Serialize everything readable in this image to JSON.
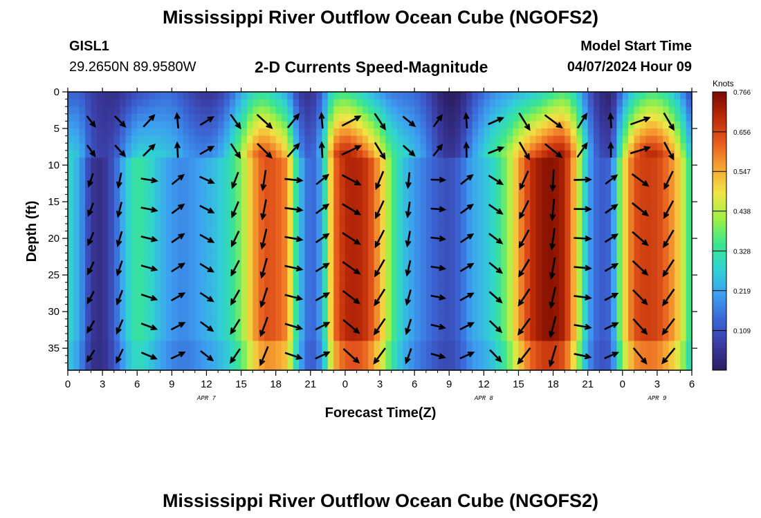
{
  "header": {
    "title": "Mississippi River Outflow Ocean Cube (NGOFS2)",
    "station": "GISL1",
    "coords": "29.2650N  89.9580W",
    "plot_title": "2-D Currents Speed-Magnitude",
    "start_label": "Model Start Time",
    "start_value": "04/07/2024 Hour 09"
  },
  "footer": {
    "title": "Mississippi River Outflow Ocean Cube (NGOFS2)"
  },
  "chart_data": {
    "type": "heatmap",
    "title": "2-D Currents Speed-Magnitude",
    "xlabel": "Forecast Time(Z)",
    "ylabel": "Depth (ft)",
    "x_range_hours": [
      0,
      54
    ],
    "x_tick_labels": [
      "0",
      "3",
      "6",
      "9",
      "12",
      "15",
      "18",
      "21",
      "0",
      "3",
      "6",
      "9",
      "12",
      "15",
      "18",
      "21",
      "0",
      "3",
      "6"
    ],
    "date_labels": [
      {
        "label": "APR 7",
        "hour": 12
      },
      {
        "label": "APR 8",
        "hour": 36
      },
      {
        "label": "APR 9",
        "hour": 51
      }
    ],
    "y_range": [
      0,
      38
    ],
    "y_ticks": [
      0,
      5,
      10,
      15,
      20,
      25,
      30,
      35
    ],
    "colorbar": {
      "unit": "Knots",
      "min": 0.0,
      "max": 0.766,
      "tick_labels": [
        "0.766",
        "0.656",
        "0.547",
        "0.438",
        "0.328",
        "0.219",
        "0.109"
      ],
      "colors": [
        "#2a1d60",
        "#3a3aa0",
        "#3b66d6",
        "#3ca0f0",
        "#30d2d2",
        "#3ce68c",
        "#a0f046",
        "#f0e646",
        "#f6a532",
        "#e65a1e",
        "#bb2a08",
        "#7a0a00"
      ]
    },
    "speed_profile_by_hour": [
      {
        "hour": 0,
        "speed": 0.3
      },
      {
        "hour": 1,
        "speed": 0.22
      },
      {
        "hour": 2,
        "speed": 0.06
      },
      {
        "hour": 3,
        "speed": 0.04
      },
      {
        "hour": 4,
        "speed": 0.12
      },
      {
        "hour": 5,
        "speed": 0.26
      },
      {
        "hour": 6,
        "speed": 0.34
      },
      {
        "hour": 7,
        "speed": 0.3
      },
      {
        "hour": 8,
        "speed": 0.24
      },
      {
        "hour": 9,
        "speed": 0.2
      },
      {
        "hour": 10,
        "speed": 0.18
      },
      {
        "hour": 11,
        "speed": 0.2
      },
      {
        "hour": 12,
        "speed": 0.23
      },
      {
        "hour": 13,
        "speed": 0.26
      },
      {
        "hour": 14,
        "speed": 0.31
      },
      {
        "hour": 15,
        "speed": 0.4
      },
      {
        "hour": 16,
        "speed": 0.55
      },
      {
        "hour": 17,
        "speed": 0.64
      },
      {
        "hour": 18,
        "speed": 0.63
      },
      {
        "hour": 19,
        "speed": 0.58
      },
      {
        "hour": 20,
        "speed": 0.26
      },
      {
        "hour": 21,
        "speed": 0.12
      },
      {
        "hour": 22,
        "speed": 0.22
      },
      {
        "hour": 23,
        "speed": 0.6
      },
      {
        "hour": 24,
        "speed": 0.7
      },
      {
        "hour": 25,
        "speed": 0.71
      },
      {
        "hour": 26,
        "speed": 0.67
      },
      {
        "hour": 27,
        "speed": 0.55
      },
      {
        "hour": 28,
        "speed": 0.38
      },
      {
        "hour": 29,
        "speed": 0.26
      },
      {
        "hour": 30,
        "speed": 0.2
      },
      {
        "hour": 31,
        "speed": 0.16
      },
      {
        "hour": 32,
        "speed": 0.12
      },
      {
        "hour": 33,
        "speed": 0.1
      },
      {
        "hour": 34,
        "speed": 0.14
      },
      {
        "hour": 35,
        "speed": 0.22
      },
      {
        "hour": 36,
        "speed": 0.25
      },
      {
        "hour": 37,
        "speed": 0.3
      },
      {
        "hour": 38,
        "speed": 0.4
      },
      {
        "hour": 39,
        "speed": 0.56
      },
      {
        "hour": 40,
        "speed": 0.68
      },
      {
        "hour": 41,
        "speed": 0.74
      },
      {
        "hour": 42,
        "speed": 0.75
      },
      {
        "hour": 43,
        "speed": 0.71
      },
      {
        "hour": 44,
        "speed": 0.5
      },
      {
        "hour": 45,
        "speed": 0.22
      },
      {
        "hour": 46,
        "speed": 0.12
      },
      {
        "hour": 47,
        "speed": 0.14
      },
      {
        "hour": 48,
        "speed": 0.46
      },
      {
        "hour": 49,
        "speed": 0.64
      },
      {
        "hour": 50,
        "speed": 0.67
      },
      {
        "hour": 51,
        "speed": 0.66
      },
      {
        "hour": 52,
        "speed": 0.6
      },
      {
        "hour": 53,
        "speed": 0.5
      },
      {
        "hour": 54,
        "speed": 0.3
      }
    ],
    "vector_rows_depth_ft": [
      4,
      8,
      12,
      16,
      20,
      24,
      28,
      32,
      36
    ]
  }
}
